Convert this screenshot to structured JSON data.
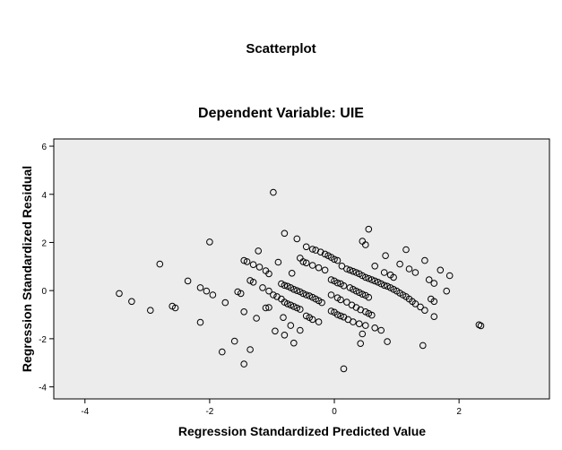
{
  "chart_data": {
    "type": "scatter",
    "title": "Scatterplot",
    "subtitle": "Dependent Variable: UIE",
    "xlabel": "Regression Standardized Predicted Value",
    "ylabel": "Regression Standardized Residual",
    "xlim": [
      -4.5,
      3.45
    ],
    "ylim": [
      -4.5,
      6.3
    ],
    "xticks": [
      "-4",
      "-2",
      "0",
      "2"
    ],
    "xtick_values": [
      -4,
      -2,
      0,
      2
    ],
    "yticks": [
      "-4",
      "-2",
      "0",
      "2",
      "4",
      "6"
    ],
    "ytick_values": [
      -4,
      -2,
      0,
      2,
      4,
      6
    ],
    "grid": false,
    "background": "#ececec",
    "marker_color": "#000000",
    "points": [
      {
        "x": -3.45,
        "y": -0.12
      },
      {
        "x": -3.25,
        "y": -0.45
      },
      {
        "x": -2.95,
        "y": -0.82
      },
      {
        "x": -2.8,
        "y": 1.1
      },
      {
        "x": -2.6,
        "y": -0.65
      },
      {
        "x": -2.55,
        "y": -0.72
      },
      {
        "x": -2.35,
        "y": 0.4
      },
      {
        "x": -2.15,
        "y": 0.12
      },
      {
        "x": -2.15,
        "y": -1.32
      },
      {
        "x": -2.05,
        "y": -0.02
      },
      {
        "x": -1.95,
        "y": -0.18
      },
      {
        "x": -2.0,
        "y": 2.02
      },
      {
        "x": -1.75,
        "y": -0.5
      },
      {
        "x": -1.8,
        "y": -2.55
      },
      {
        "x": -1.6,
        "y": -2.1
      },
      {
        "x": -1.55,
        "y": -0.05
      },
      {
        "x": -1.5,
        "y": -0.12
      },
      {
        "x": -1.45,
        "y": -0.88
      },
      {
        "x": -1.45,
        "y": -3.05
      },
      {
        "x": -1.35,
        "y": -2.45
      },
      {
        "x": -1.25,
        "y": -1.15
      },
      {
        "x": -1.45,
        "y": 1.25
      },
      {
        "x": -1.4,
        "y": 1.2
      },
      {
        "x": -1.3,
        "y": 1.08
      },
      {
        "x": -1.2,
        "y": 0.98
      },
      {
        "x": -1.1,
        "y": 0.82
      },
      {
        "x": -1.05,
        "y": 0.7
      },
      {
        "x": -1.22,
        "y": 1.65
      },
      {
        "x": -1.35,
        "y": 0.42
      },
      {
        "x": -1.3,
        "y": 0.35
      },
      {
        "x": -1.15,
        "y": 0.12
      },
      {
        "x": -1.05,
        "y": -0.02
      },
      {
        "x": -0.98,
        "y": -0.18
      },
      {
        "x": -0.92,
        "y": -0.25
      },
      {
        "x": -0.85,
        "y": -0.35
      },
      {
        "x": -1.05,
        "y": -0.7
      },
      {
        "x": -1.1,
        "y": -0.72
      },
      {
        "x": -0.95,
        "y": -1.68
      },
      {
        "x": -0.82,
        "y": -1.12
      },
      {
        "x": -0.8,
        "y": -1.85
      },
      {
        "x": -0.7,
        "y": -1.45
      },
      {
        "x": -0.65,
        "y": -2.18
      },
      {
        "x": -0.55,
        "y": -1.65
      },
      {
        "x": -0.9,
        "y": 1.18
      },
      {
        "x": -0.8,
        "y": 2.38
      },
      {
        "x": -0.6,
        "y": 2.15
      },
      {
        "x": -0.98,
        "y": 4.08
      },
      {
        "x": -0.68,
        "y": 0.72
      },
      {
        "x": -0.85,
        "y": 0.28
      },
      {
        "x": -0.8,
        "y": 0.22
      },
      {
        "x": -0.75,
        "y": 0.18
      },
      {
        "x": -0.7,
        "y": 0.12
      },
      {
        "x": -0.65,
        "y": 0.05
      },
      {
        "x": -0.6,
        "y": 0.0
      },
      {
        "x": -0.55,
        "y": -0.05
      },
      {
        "x": -0.5,
        "y": -0.12
      },
      {
        "x": -0.45,
        "y": -0.18
      },
      {
        "x": -0.4,
        "y": -0.22
      },
      {
        "x": -0.35,
        "y": -0.28
      },
      {
        "x": -0.3,
        "y": -0.35
      },
      {
        "x": -0.25,
        "y": -0.42
      },
      {
        "x": -0.2,
        "y": -0.5
      },
      {
        "x": -0.8,
        "y": -0.48
      },
      {
        "x": -0.75,
        "y": -0.55
      },
      {
        "x": -0.7,
        "y": -0.6
      },
      {
        "x": -0.65,
        "y": -0.66
      },
      {
        "x": -0.6,
        "y": -0.72
      },
      {
        "x": -0.55,
        "y": -0.78
      },
      {
        "x": -0.45,
        "y": -1.05
      },
      {
        "x": -0.4,
        "y": -1.12
      },
      {
        "x": -0.35,
        "y": -1.2
      },
      {
        "x": -0.25,
        "y": -1.3
      },
      {
        "x": -0.55,
        "y": 1.35
      },
      {
        "x": -0.5,
        "y": 1.2
      },
      {
        "x": -0.45,
        "y": 1.15
      },
      {
        "x": -0.35,
        "y": 1.05
      },
      {
        "x": -0.25,
        "y": 0.95
      },
      {
        "x": -0.15,
        "y": 0.85
      },
      {
        "x": -0.45,
        "y": 1.82
      },
      {
        "x": -0.35,
        "y": 1.72
      },
      {
        "x": -0.3,
        "y": 1.68
      },
      {
        "x": -0.22,
        "y": 1.6
      },
      {
        "x": -0.15,
        "y": 1.52
      },
      {
        "x": -0.1,
        "y": 1.45
      },
      {
        "x": -0.05,
        "y": 1.38
      },
      {
        "x": 0.0,
        "y": 1.3
      },
      {
        "x": 0.05,
        "y": 1.25
      },
      {
        "x": 0.12,
        "y": 1.02
      },
      {
        "x": 0.2,
        "y": 0.9
      },
      {
        "x": 0.25,
        "y": 0.85
      },
      {
        "x": 0.3,
        "y": 0.8
      },
      {
        "x": 0.35,
        "y": 0.75
      },
      {
        "x": 0.4,
        "y": 0.7
      },
      {
        "x": 0.45,
        "y": 0.62
      },
      {
        "x": 0.5,
        "y": 0.55
      },
      {
        "x": 0.55,
        "y": 0.5
      },
      {
        "x": 0.6,
        "y": 0.45
      },
      {
        "x": 0.65,
        "y": 0.4
      },
      {
        "x": 0.7,
        "y": 0.35
      },
      {
        "x": 0.75,
        "y": 0.28
      },
      {
        "x": 0.8,
        "y": 0.22
      },
      {
        "x": 0.85,
        "y": 0.18
      },
      {
        "x": 0.9,
        "y": 0.12
      },
      {
        "x": 0.95,
        "y": 0.05
      },
      {
        "x": 1.0,
        "y": -0.02
      },
      {
        "x": 1.05,
        "y": -0.1
      },
      {
        "x": 1.1,
        "y": -0.18
      },
      {
        "x": 1.15,
        "y": -0.25
      },
      {
        "x": 1.2,
        "y": -0.35
      },
      {
        "x": 1.25,
        "y": -0.45
      },
      {
        "x": 1.3,
        "y": -0.55
      },
      {
        "x": 1.38,
        "y": -0.68
      },
      {
        "x": -0.05,
        "y": 0.45
      },
      {
        "x": 0.0,
        "y": 0.4
      },
      {
        "x": 0.05,
        "y": 0.32
      },
      {
        "x": 0.1,
        "y": 0.28
      },
      {
        "x": 0.15,
        "y": 0.2
      },
      {
        "x": 0.25,
        "y": 0.12
      },
      {
        "x": 0.3,
        "y": 0.05
      },
      {
        "x": 0.35,
        "y": -0.02
      },
      {
        "x": 0.4,
        "y": -0.08
      },
      {
        "x": 0.45,
        "y": -0.15
      },
      {
        "x": 0.5,
        "y": -0.2
      },
      {
        "x": 0.55,
        "y": -0.28
      },
      {
        "x": -0.05,
        "y": -0.18
      },
      {
        "x": 0.05,
        "y": -0.3
      },
      {
        "x": 0.1,
        "y": -0.38
      },
      {
        "x": 0.2,
        "y": -0.48
      },
      {
        "x": 0.28,
        "y": -0.6
      },
      {
        "x": 0.35,
        "y": -0.7
      },
      {
        "x": 0.42,
        "y": -0.8
      },
      {
        "x": 0.5,
        "y": -0.88
      },
      {
        "x": 0.55,
        "y": -0.95
      },
      {
        "x": 0.6,
        "y": -1.02
      },
      {
        "x": -0.05,
        "y": -0.85
      },
      {
        "x": 0.0,
        "y": -0.9
      },
      {
        "x": 0.05,
        "y": -1.0
      },
      {
        "x": 0.1,
        "y": -1.05
      },
      {
        "x": 0.15,
        "y": -1.1
      },
      {
        "x": 0.22,
        "y": -1.2
      },
      {
        "x": 0.3,
        "y": -1.3
      },
      {
        "x": 0.4,
        "y": -1.38
      },
      {
        "x": 0.5,
        "y": -1.45
      },
      {
        "x": 0.65,
        "y": -1.55
      },
      {
        "x": 0.75,
        "y": -1.65
      },
      {
        "x": 0.45,
        "y": -1.8
      },
      {
        "x": 0.42,
        "y": -2.2
      },
      {
        "x": 0.85,
        "y": -2.12
      },
      {
        "x": 0.15,
        "y": -3.25
      },
      {
        "x": 0.45,
        "y": 2.05
      },
      {
        "x": 0.5,
        "y": 1.9
      },
      {
        "x": 0.55,
        "y": 2.55
      },
      {
        "x": 0.65,
        "y": 1.02
      },
      {
        "x": 0.8,
        "y": 0.75
      },
      {
        "x": 0.9,
        "y": 0.65
      },
      {
        "x": 0.95,
        "y": 0.55
      },
      {
        "x": 0.82,
        "y": 1.45
      },
      {
        "x": 1.05,
        "y": 1.1
      },
      {
        "x": 1.15,
        "y": 1.7
      },
      {
        "x": 1.2,
        "y": 0.9
      },
      {
        "x": 1.3,
        "y": 0.75
      },
      {
        "x": 1.45,
        "y": 1.25
      },
      {
        "x": 1.52,
        "y": 0.45
      },
      {
        "x": 1.6,
        "y": 0.3
      },
      {
        "x": 1.55,
        "y": -0.35
      },
      {
        "x": 1.6,
        "y": -0.45
      },
      {
        "x": 1.45,
        "y": -0.82
      },
      {
        "x": 1.6,
        "y": -1.08
      },
      {
        "x": 1.42,
        "y": -2.28
      },
      {
        "x": 1.7,
        "y": 0.85
      },
      {
        "x": 1.85,
        "y": 0.62
      },
      {
        "x": 1.8,
        "y": -0.02
      },
      {
        "x": 2.32,
        "y": -1.42
      },
      {
        "x": 2.35,
        "y": -1.46
      }
    ]
  }
}
